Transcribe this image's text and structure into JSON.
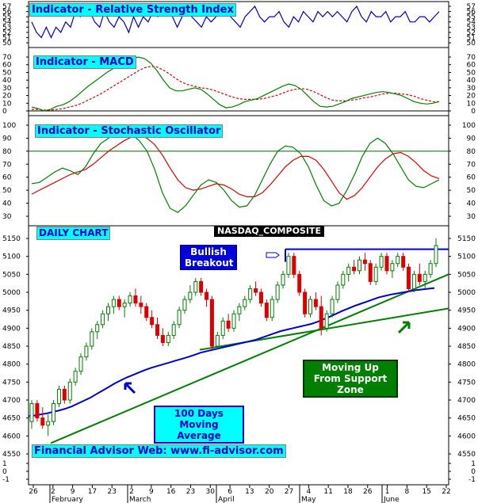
{
  "panels": {
    "rsi_title": "Indicator - Relative Strength Index",
    "macd_title": "Indicator - MACD",
    "stoch_title": "Indicator - Stochastic Oscillator",
    "daily_chart": "DAILY CHART",
    "symbol": "NASDAQ_COMPOSITE",
    "annot_breakout": "Bullish Breakout",
    "annot_support": "Moving Up From Support Zone",
    "annot_ma": "100 Days Moving Average",
    "footer": "Financial Advisor Web: www.fi-advisor.com"
  },
  "colors": {
    "price_up": "#008000",
    "price_down": "#dd0000",
    "ma": "#0000cc",
    "trendline": "#008000",
    "resistance": "#0000cc",
    "stoch_k": "#008000",
    "stoch_d": "#dd0000",
    "macd": "#008000",
    "macd_signal": "#dd0000",
    "rsi": "#0000cc"
  },
  "chart_data": [
    {
      "type": "line",
      "title": "Indicator - Relative Strength Index",
      "ylim": [
        50,
        57
      ],
      "y_ticks": [
        50,
        51,
        52,
        53,
        54,
        55,
        56,
        57
      ],
      "series": [
        {
          "values": [
            54,
            52,
            51,
            53,
            51,
            53,
            52,
            54,
            53,
            56,
            55,
            57,
            56,
            54,
            53,
            56,
            54,
            53,
            55,
            54,
            52,
            55,
            53,
            55,
            54,
            56,
            55,
            56,
            57,
            55,
            53,
            55,
            56,
            55,
            54,
            53,
            55,
            54,
            55,
            57,
            56,
            55,
            54,
            53,
            55,
            56,
            57,
            55,
            54,
            55,
            55,
            56,
            54,
            53,
            55,
            54,
            56,
            55,
            54,
            56,
            55,
            56,
            55,
            56,
            55,
            54,
            56,
            57,
            55,
            54,
            56,
            55,
            55,
            56,
            54,
            55,
            55,
            56,
            54,
            54,
            55,
            55,
            54,
            55,
            56
          ]
        }
      ]
    },
    {
      "type": "line",
      "title": "Indicator - MACD",
      "ylim": [
        0,
        70
      ],
      "y_ticks": [
        0,
        10,
        20,
        30,
        40,
        50,
        60,
        70
      ],
      "series": [
        {
          "values": [
            5,
            3,
            0,
            2,
            6,
            8,
            12,
            18,
            25,
            32,
            38,
            44,
            50,
            55,
            60,
            64,
            67,
            70,
            68,
            62,
            52,
            40,
            30,
            26,
            26,
            28,
            30,
            28,
            22,
            15,
            8,
            4,
            5,
            8,
            12,
            14,
            16,
            20,
            24,
            28,
            32,
            35,
            33,
            28,
            20,
            12,
            6,
            5,
            6,
            9,
            12,
            16,
            18,
            20,
            22,
            24,
            25,
            24,
            22,
            20,
            16,
            12,
            10,
            9,
            10,
            12
          ]
        },
        {
          "values": [
            2,
            2,
            1,
            1,
            2,
            3,
            5,
            7,
            10,
            14,
            18,
            22,
            27,
            32,
            37,
            42,
            47,
            52,
            56,
            58,
            57,
            53,
            48,
            42,
            37,
            34,
            32,
            30,
            29,
            27,
            24,
            21,
            18,
            16,
            15,
            15,
            15,
            16,
            18,
            20,
            23,
            26,
            28,
            29,
            28,
            25,
            21,
            17,
            14,
            13,
            13,
            14,
            15,
            17,
            18,
            20,
            22,
            23,
            23,
            22,
            21,
            19,
            16,
            14,
            12,
            12
          ]
        }
      ]
    },
    {
      "type": "line",
      "title": "Indicator - Stochastic Oscillator",
      "ylim": [
        30,
        100
      ],
      "y_ticks": [
        30,
        40,
        50,
        60,
        70,
        80,
        90,
        100
      ],
      "reference_line": 80,
      "series": [
        {
          "values": [
            55,
            56,
            60,
            64,
            67,
            65,
            62,
            68,
            78,
            86,
            90,
            94,
            95,
            93,
            88,
            80,
            66,
            48,
            36,
            33,
            38,
            46,
            54,
            58,
            56,
            50,
            42,
            37,
            38,
            46,
            58,
            70,
            80,
            84,
            83,
            78,
            68,
            54,
            42,
            38,
            40,
            50,
            62,
            76,
            86,
            90,
            86,
            78,
            68,
            58,
            53,
            52,
            55,
            58
          ]
        },
        {
          "values": [
            47,
            50,
            53,
            56,
            59,
            62,
            64,
            66,
            70,
            75,
            80,
            84,
            88,
            91,
            92,
            90,
            85,
            77,
            67,
            58,
            52,
            50,
            51,
            53,
            55,
            54,
            51,
            47,
            45,
            45,
            48,
            54,
            61,
            68,
            73,
            76,
            76,
            73,
            66,
            57,
            48,
            43,
            46,
            52,
            60,
            68,
            74,
            78,
            79,
            76,
            71,
            65,
            61,
            59
          ]
        }
      ]
    },
    {
      "type": "candlestick",
      "title": "NASDAQ_COMPOSITE",
      "ylim": [
        -1,
        5150
      ],
      "y_ticks": [
        -1,
        0,
        1,
        4550,
        4600,
        4650,
        4700,
        4750,
        4800,
        4850,
        4900,
        4950,
        5000,
        5050,
        5100,
        5150
      ],
      "x_tick_labels": [
        "26",
        "2",
        "9",
        "17",
        "23",
        "2",
        "9",
        "16",
        "23",
        "30",
        "6",
        "13",
        "20",
        "27",
        "4",
        "11",
        "18",
        "26",
        "1",
        "8",
        "15",
        "22"
      ],
      "month_labels": [
        "February",
        "March",
        "April",
        "May",
        "June"
      ],
      "candles": [
        [
          4640,
          4700,
          4620,
          4690
        ],
        [
          4690,
          4700,
          4640,
          4650
        ],
        [
          4650,
          4680,
          4620,
          4630
        ],
        [
          4630,
          4660,
          4600,
          4640
        ],
        [
          4640,
          4700,
          4630,
          4690
        ],
        [
          4690,
          4740,
          4680,
          4730
        ],
        [
          4730,
          4740,
          4690,
          4700
        ],
        [
          4700,
          4760,
          4690,
          4750
        ],
        [
          4750,
          4790,
          4740,
          4780
        ],
        [
          4780,
          4830,
          4770,
          4820
        ],
        [
          4820,
          4860,
          4810,
          4850
        ],
        [
          4850,
          4900,
          4840,
          4890
        ],
        [
          4890,
          4920,
          4870,
          4910
        ],
        [
          4910,
          4950,
          4900,
          4940
        ],
        [
          4940,
          4970,
          4920,
          4960
        ],
        [
          4960,
          4990,
          4940,
          4980
        ],
        [
          4980,
          4990,
          4950,
          4960
        ],
        [
          4960,
          4980,
          4930,
          4970
        ],
        [
          4970,
          5000,
          4960,
          4990
        ],
        [
          4990,
          5010,
          4960,
          4970
        ],
        [
          4970,
          4990,
          4940,
          4960
        ],
        [
          4960,
          4970,
          4920,
          4930
        ],
        [
          4930,
          4950,
          4900,
          4910
        ],
        [
          4910,
          4930,
          4870,
          4880
        ],
        [
          4880,
          4900,
          4850,
          4860
        ],
        [
          4860,
          4890,
          4850,
          4880
        ],
        [
          4880,
          4920,
          4870,
          4910
        ],
        [
          4910,
          4960,
          4900,
          4950
        ],
        [
          4950,
          4990,
          4940,
          4980
        ],
        [
          4980,
          5020,
          4970,
          5000
        ],
        [
          5000,
          5040,
          4990,
          5030
        ],
        [
          5030,
          5040,
          4990,
          5000
        ],
        [
          5000,
          5010,
          4960,
          4980
        ],
        [
          4980,
          4990,
          4840,
          4850
        ],
        [
          4850,
          4890,
          4840,
          4880
        ],
        [
          4880,
          4930,
          4870,
          4920
        ],
        [
          4920,
          4940,
          4890,
          4900
        ],
        [
          4900,
          4950,
          4890,
          4940
        ],
        [
          4940,
          4970,
          4920,
          4960
        ],
        [
          4960,
          4990,
          4950,
          4980
        ],
        [
          4980,
          5020,
          4970,
          5010
        ],
        [
          5010,
          5030,
          4990,
          5000
        ],
        [
          5000,
          5010,
          4960,
          4970
        ],
        [
          4970,
          4980,
          4920,
          4930
        ],
        [
          4930,
          4990,
          4920,
          4980
        ],
        [
          4980,
          5030,
          4970,
          5020
        ],
        [
          5020,
          5060,
          5010,
          5050
        ],
        [
          5050,
          5110,
          5040,
          5100
        ],
        [
          5100,
          5110,
          5040,
          5050
        ],
        [
          5050,
          5060,
          4990,
          5000
        ],
        [
          5000,
          5010,
          4930,
          4940
        ],
        [
          4940,
          4990,
          4930,
          4980
        ],
        [
          4980,
          5000,
          4950,
          4960
        ],
        [
          4960,
          4990,
          4880,
          4900
        ],
        [
          4900,
          4950,
          4890,
          4940
        ],
        [
          4940,
          4990,
          4930,
          4980
        ],
        [
          4980,
          5030,
          4970,
          5020
        ],
        [
          5020,
          5060,
          5010,
          5050
        ],
        [
          5050,
          5080,
          5030,
          5070
        ],
        [
          5070,
          5090,
          5050,
          5060
        ],
        [
          5060,
          5100,
          5050,
          5090
        ],
        [
          5090,
          5110,
          5060,
          5080
        ],
        [
          5080,
          5090,
          5020,
          5030
        ],
        [
          5030,
          5080,
          5020,
          5070
        ],
        [
          5070,
          5110,
          5060,
          5100
        ],
        [
          5100,
          5110,
          5050,
          5060
        ],
        [
          5060,
          5090,
          5040,
          5080
        ],
        [
          5080,
          5110,
          5070,
          5100
        ],
        [
          5100,
          5110,
          5060,
          5070
        ],
        [
          5070,
          5080,
          5000,
          5010
        ],
        [
          5010,
          5060,
          5000,
          5050
        ],
        [
          5050,
          5080,
          5020,
          5030
        ],
        [
          5030,
          5060,
          5010,
          5050
        ],
        [
          5050,
          5090,
          5040,
          5080
        ],
        [
          5080,
          5150,
          5070,
          5130
        ]
      ],
      "moving_average_100": {
        "name": "100 Days Moving Average",
        "values": [
          4655,
          4657,
          4660,
          4663,
          4667,
          4671,
          4676,
          4682,
          4690,
          4698,
          4706,
          4716,
          4726,
          4736,
          4746,
          4755,
          4763,
          4770,
          4777,
          4784,
          4790,
          4795,
          4800,
          4805,
          4810,
          4815,
          4820,
          4826,
          4832,
          4836,
          4840,
          4844,
          4848,
          4852,
          4856,
          4860,
          4864,
          4868,
          4874,
          4880,
          4886,
          4892,
          4896,
          4900,
          4904,
          4908,
          4912,
          4918,
          4925,
          4932,
          4940,
          4948,
          4955,
          4962,
          4968,
          4974,
          4980,
          4986,
          4990,
          4994,
          4997,
          5000,
          5003,
          5006,
          5008,
          5010,
          5012
        ]
      },
      "trendlines": [
        {
          "name": "support",
          "from": [
            4580,
            0
          ],
          "to": [
            5050,
            1
          ]
        },
        {
          "name": "support2",
          "from": [
            4840,
            0
          ],
          "to": [
            4955,
            1
          ]
        },
        {
          "name": "resistance",
          "value": 5120
        }
      ]
    }
  ]
}
